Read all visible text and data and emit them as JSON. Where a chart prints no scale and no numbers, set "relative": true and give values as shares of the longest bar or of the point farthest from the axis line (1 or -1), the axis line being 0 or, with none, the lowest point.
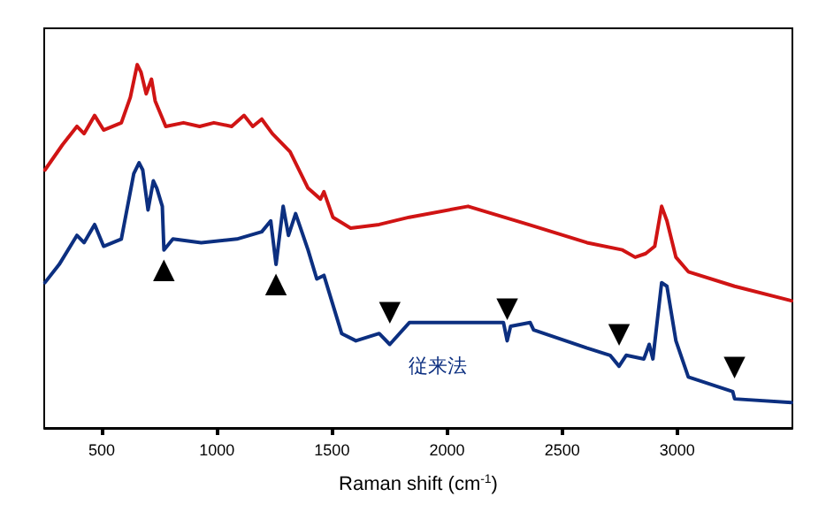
{
  "chart_data": {
    "type": "line",
    "relative": true,
    "xlabel": "Raman shift (cm$^{-1}$)",
    "xlim": [
      250,
      3500
    ],
    "xticks": [
      500,
      1000,
      1500,
      2000,
      2500,
      3000
    ],
    "grid": false,
    "legend": false,
    "marker": "none",
    "line_style": "solid",
    "series": [
      {
        "color": "#d01414",
        "x": [
          253,
          330,
          392,
          423,
          469,
          508,
          585,
          624,
          654,
          670,
          693,
          716,
          732,
          778,
          855,
          925,
          987,
          1064,
          1118,
          1156,
          1195,
          1241,
          1318,
          1396,
          1450,
          1465,
          1504,
          1581,
          1705,
          1836,
          2091,
          2353,
          2608,
          2762,
          2817,
          2863,
          2902,
          2932,
          2955,
          2994,
          3048,
          3249,
          3496
        ],
        "values": [
          0.71,
          0.78,
          0.83,
          0.81,
          0.86,
          0.82,
          0.84,
          0.91,
          1,
          0.98,
          0.92,
          0.96,
          0.9,
          0.83,
          0.84,
          0.83,
          0.84,
          0.83,
          0.86,
          0.83,
          0.85,
          0.81,
          0.76,
          0.66,
          0.63,
          0.65,
          0.58,
          0.55,
          0.56,
          0.58,
          0.61,
          0.56,
          0.51,
          0.49,
          0.47,
          0.48,
          0.5,
          0.61,
          0.57,
          0.47,
          0.43,
          0.39,
          0.35
        ]
      },
      {
        "name": "従来法",
        "color": "#0c2f80",
        "x": [
          253,
          315,
          392,
          423,
          469,
          508,
          585,
          639,
          662,
          678,
          701,
          724,
          739,
          763,
          770,
          809,
          932,
          1087,
          1195,
          1234,
          1257,
          1288,
          1311,
          1342,
          1396,
          1434,
          1465,
          1542,
          1604,
          1705,
          1751,
          1836,
          1990,
          2168,
          2245,
          2261,
          2276,
          2361,
          2376,
          2608,
          2708,
          2747,
          2778,
          2855,
          2878,
          2894,
          2932,
          2955,
          2994,
          3048,
          3241,
          3249,
          3496
        ],
        "values": [
          0.4,
          0.45,
          0.53,
          0.51,
          0.56,
          0.5,
          0.52,
          0.7,
          0.73,
          0.71,
          0.6,
          0.68,
          0.66,
          0.61,
          0.49,
          0.52,
          0.51,
          0.52,
          0.54,
          0.57,
          0.45,
          0.61,
          0.53,
          0.59,
          0.49,
          0.41,
          0.42,
          0.26,
          0.24,
          0.26,
          0.23,
          0.29,
          0.29,
          0.29,
          0.29,
          0.24,
          0.28,
          0.29,
          0.27,
          0.22,
          0.2,
          0.17,
          0.2,
          0.19,
          0.23,
          0.19,
          0.4,
          0.39,
          0.24,
          0.14,
          0.1,
          0.08,
          0.07
        ]
      }
    ],
    "annotations": [
      {
        "text": "▲",
        "x": 770,
        "y": 0.49
      },
      {
        "text": "▲",
        "x": 1257,
        "y": 0.45
      },
      {
        "text": "▼",
        "x": 1751,
        "y": 0.23
      },
      {
        "text": "▼",
        "x": 2261,
        "y": 0.24
      },
      {
        "text": "▼",
        "x": 2747,
        "y": 0.17
      },
      {
        "text": "▼",
        "x": 3249,
        "y": 0.08
      }
    ]
  }
}
